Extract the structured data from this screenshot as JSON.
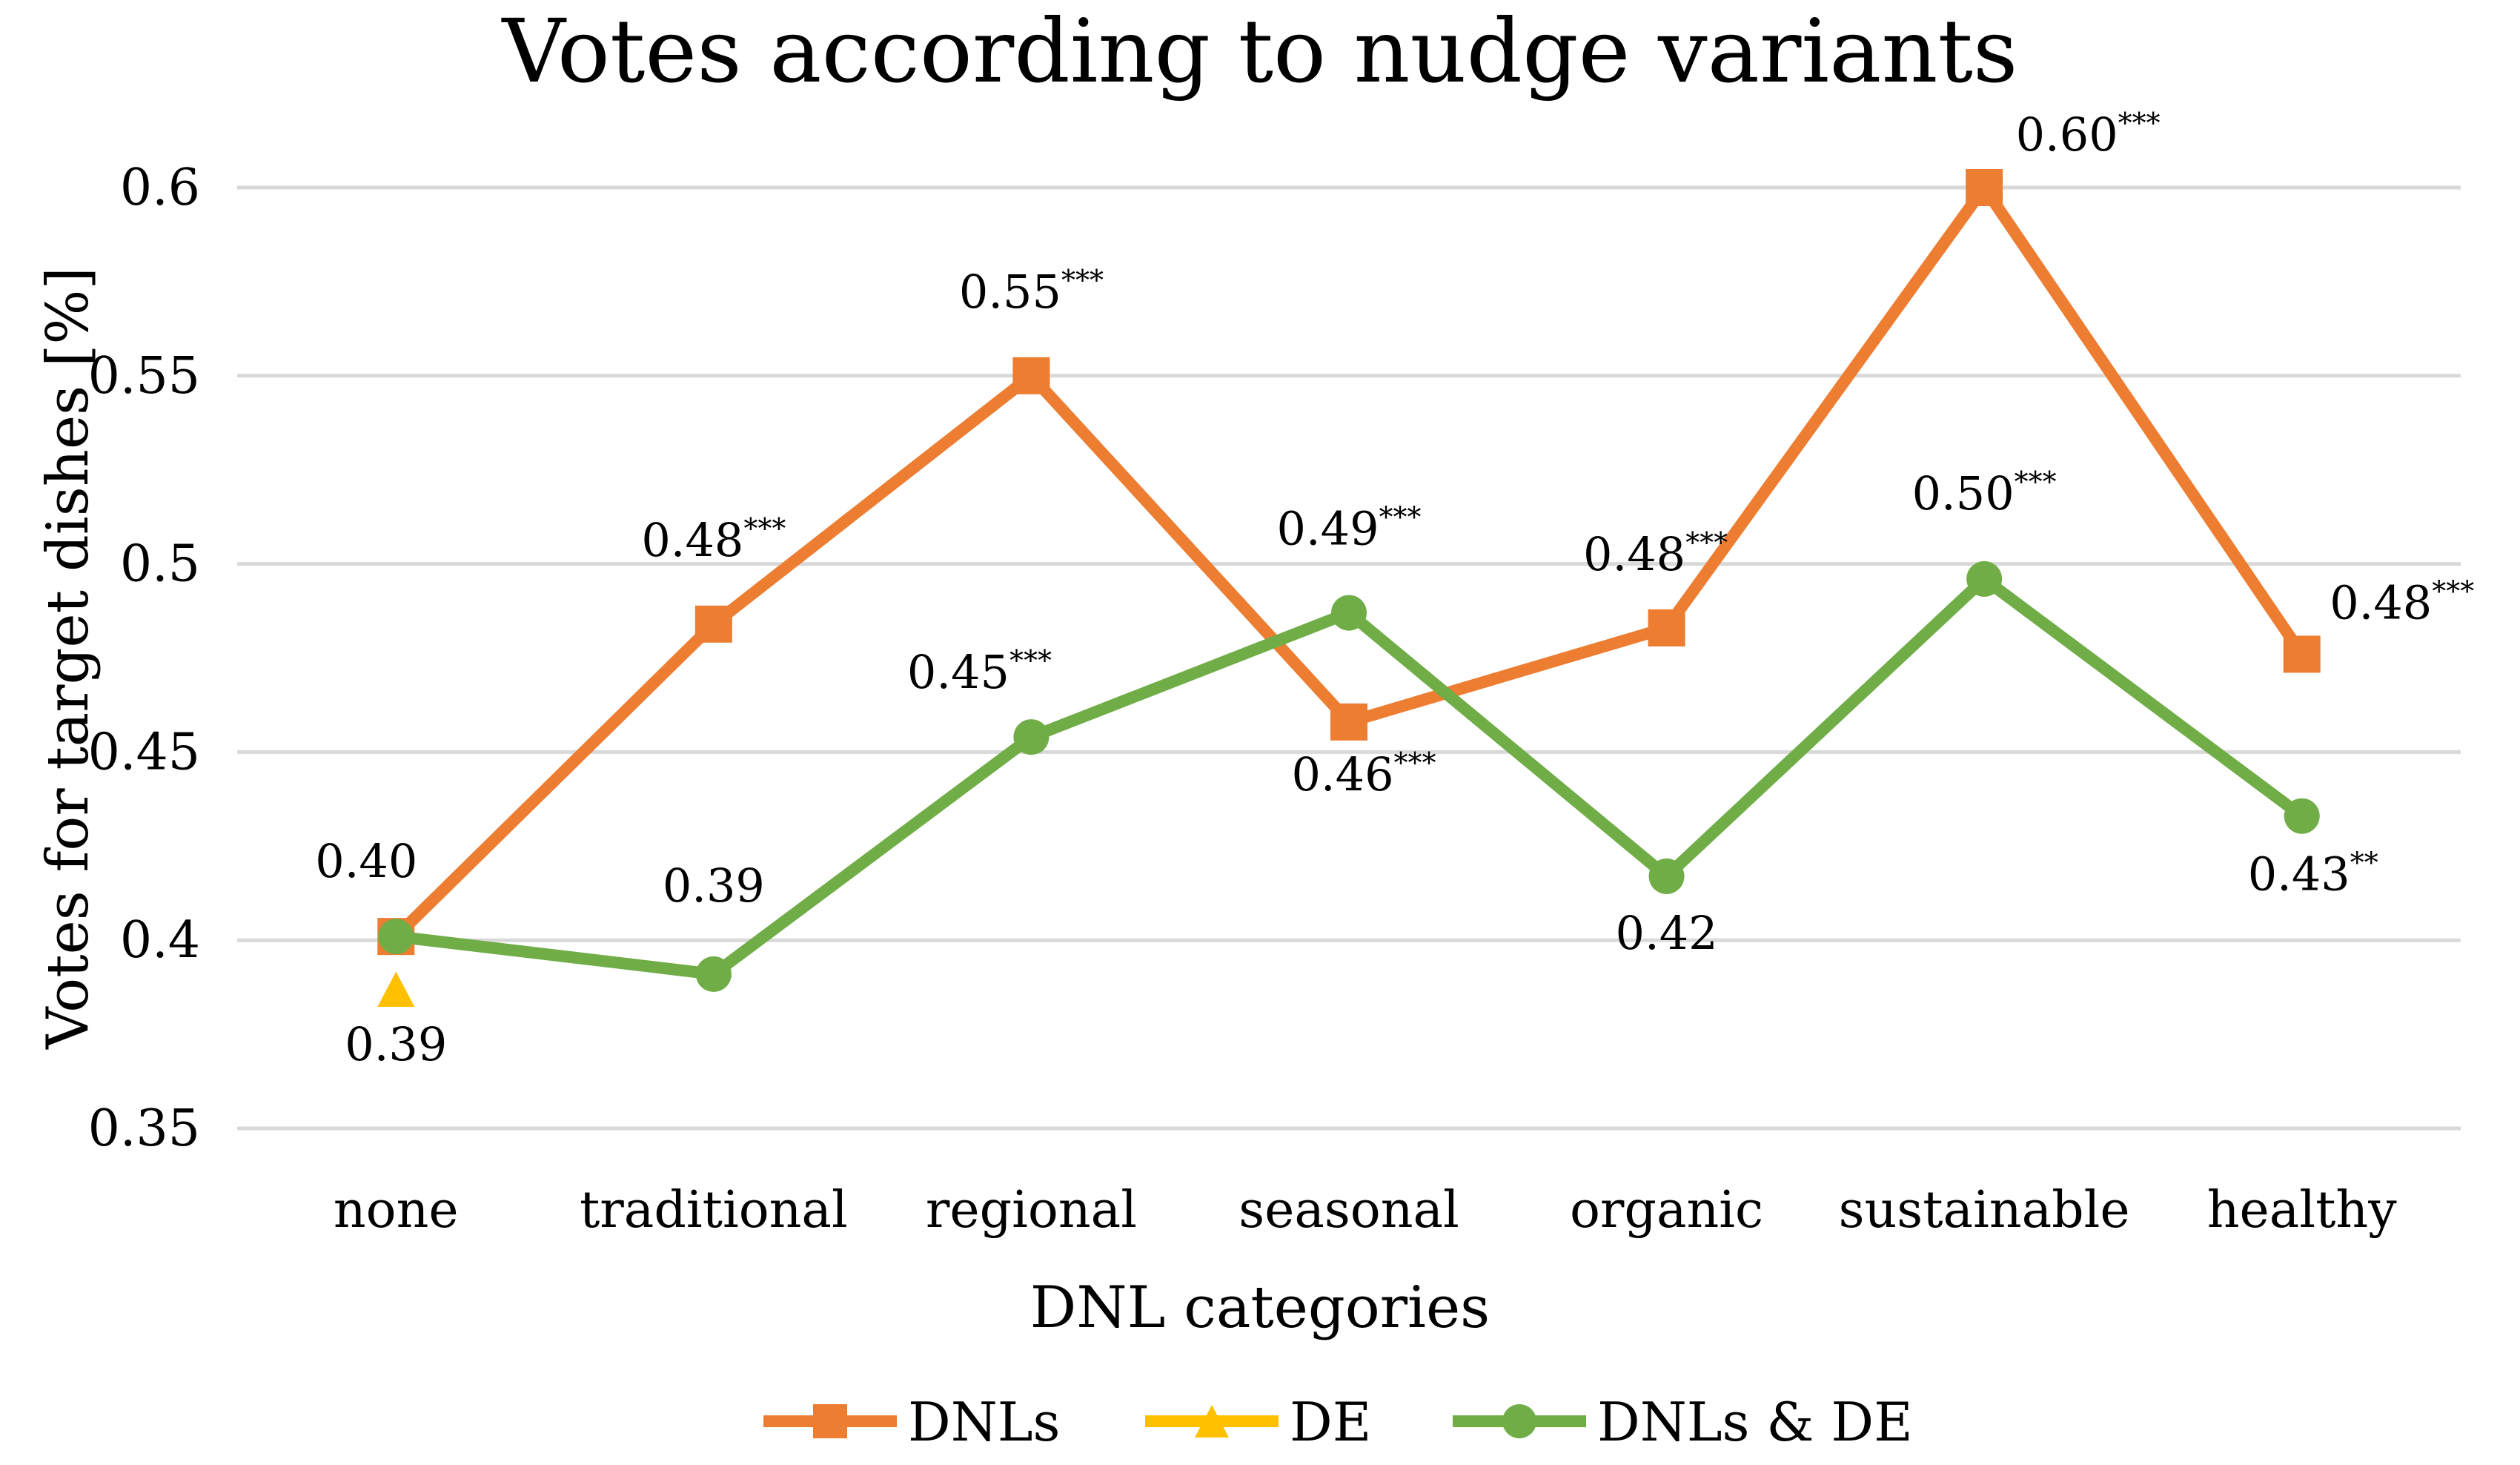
{
  "chart_data": {
    "type": "line",
    "title": "Votes according to nudge variants",
    "xlabel": "DNL categories",
    "ylabel": "Votes for target dishes [%]",
    "ylim": [
      0.35,
      0.6
    ],
    "yticks": [
      "0.35",
      "0.4",
      "0.45",
      "0.5",
      "0.55",
      "0.6"
    ],
    "ytick_values": [
      0.35,
      0.4,
      0.45,
      0.5,
      0.55,
      0.6
    ],
    "grid": true,
    "legend_position": "bottom",
    "categories": [
      "none",
      "traditional",
      "regional",
      "seasonal",
      "organic",
      "sustainable",
      "healthy"
    ],
    "series": [
      {
        "name": "DNLs",
        "color": "#ed7d31",
        "marker": "square",
        "values": [
          0.401,
          0.484,
          0.55,
          0.458,
          0.483,
          0.6,
          0.476
        ],
        "labels": [
          {
            "value": "0.40",
            "sup": ""
          },
          {
            "value": "0.48",
            "sup": "***"
          },
          {
            "value": "0.55",
            "sup": "***"
          },
          {
            "value": "0.46",
            "sup": "***"
          },
          {
            "value": "0.48",
            "sup": "***"
          },
          {
            "value": "0.60",
            "sup": "***"
          },
          {
            "value": "0.48",
            "sup": "***"
          }
        ]
      },
      {
        "name": "DE",
        "color": "#ffc000",
        "marker": "triangle",
        "values": [
          0.387,
          null,
          null,
          null,
          null,
          null,
          null
        ],
        "labels": [
          {
            "value": "0.39",
            "sup": ""
          }
        ]
      },
      {
        "name": "DNLs & DE",
        "color": "#70ad47",
        "marker": "circle",
        "values": [
          0.401,
          0.391,
          0.454,
          0.487,
          0.417,
          0.496,
          0.433
        ],
        "labels": [
          null,
          {
            "value": "0.39",
            "sup": ""
          },
          {
            "value": "0.45",
            "sup": "***"
          },
          {
            "value": "0.49",
            "sup": "***"
          },
          {
            "value": "0.42",
            "sup": ""
          },
          {
            "value": "0.50",
            "sup": "***"
          },
          {
            "value": "0.43",
            "sup": "**"
          }
        ]
      }
    ]
  }
}
